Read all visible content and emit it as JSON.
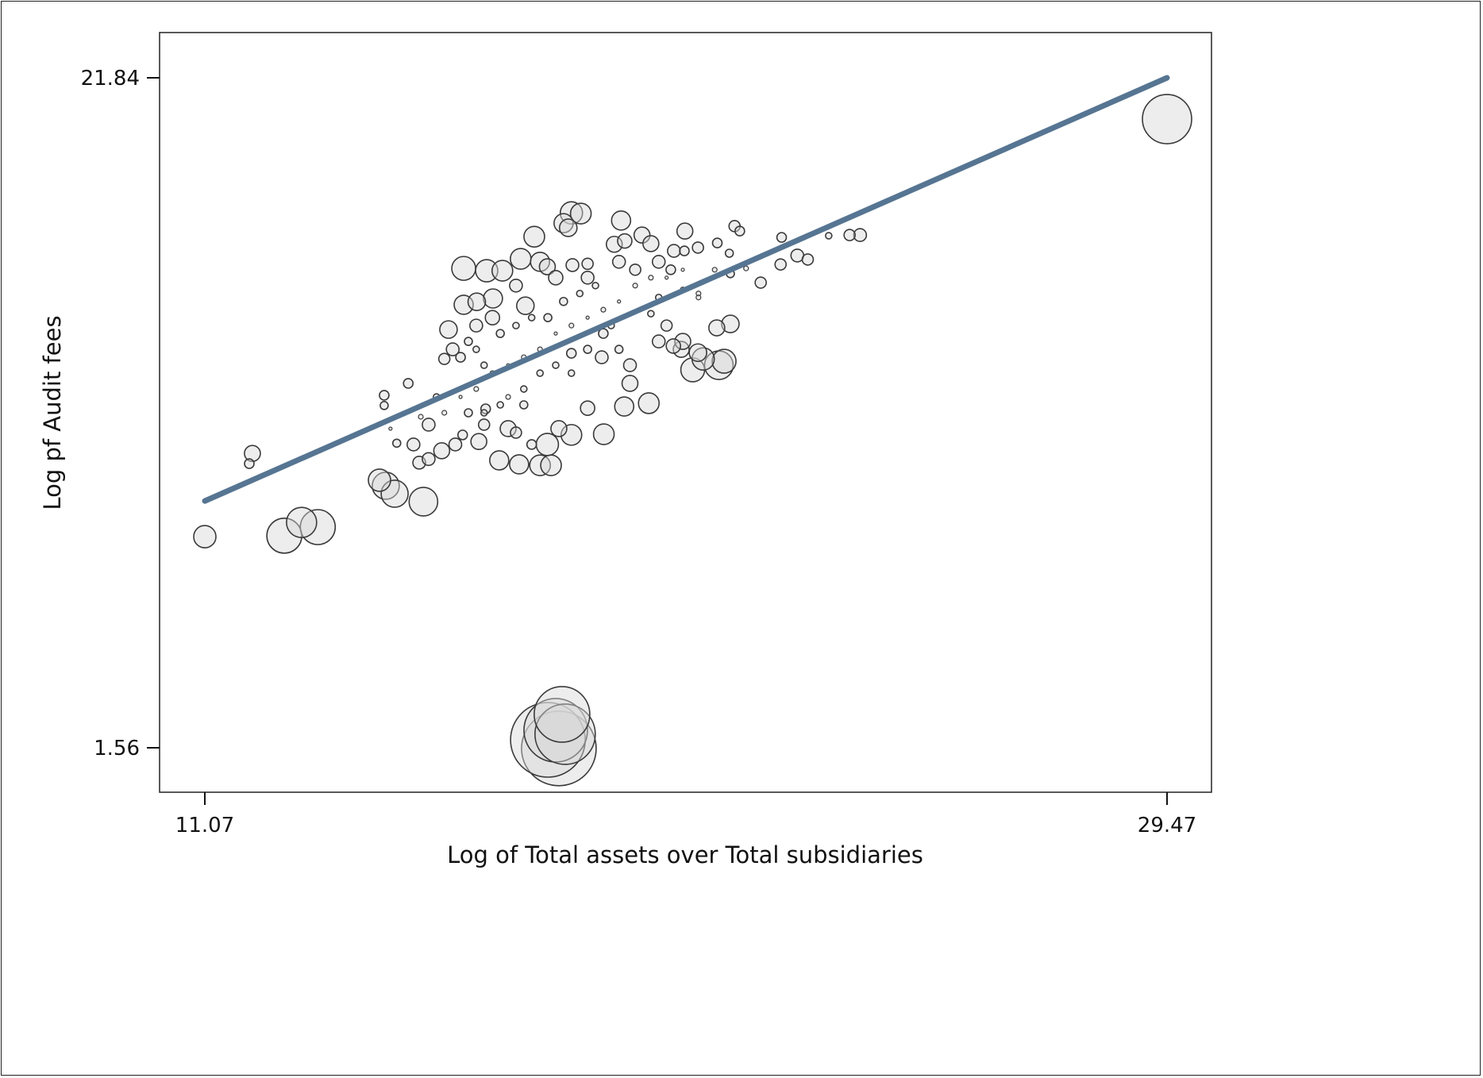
{
  "chart_data": {
    "type": "scatter",
    "title": "",
    "xlabel": "Log of Total assets over Total subsidiaries",
    "ylabel": "Log pf Audit fees",
    "xlim": [
      11.07,
      29.47
    ],
    "ylim": [
      1.56,
      21.84
    ],
    "xticks": [
      "11.07",
      "29.47"
    ],
    "yticks": [
      "1.56",
      "21.84"
    ],
    "grid": false,
    "legend": "none",
    "marker": "hollow circles weighted by size",
    "colors": {
      "marker_fill": "#d8d8d8",
      "marker_stroke": "#3a3a3a",
      "fit_line": "#567592"
    },
    "fit_line": {
      "x": [
        11.07,
        29.47
      ],
      "y": [
        9.03,
        21.84
      ]
    },
    "points": [
      [
        29.47,
        20.59,
        31
      ],
      [
        11.07,
        7.95,
        14
      ],
      [
        12.59,
        7.98,
        22
      ],
      [
        12.92,
        8.38,
        19
      ],
      [
        13.23,
        8.24,
        22
      ],
      [
        11.98,
        10.47,
        10
      ],
      [
        11.92,
        10.16,
        6
      ],
      [
        14.5,
        12.23,
        6
      ],
      [
        14.5,
        11.92,
        5
      ],
      [
        14.96,
        12.59,
        6
      ],
      [
        14.41,
        9.66,
        14
      ],
      [
        14.53,
        9.49,
        17
      ],
      [
        14.7,
        9.25,
        17
      ],
      [
        15.25,
        9.01,
        18
      ],
      [
        17.84,
        1.54,
        47
      ],
      [
        17.63,
        1.8,
        47
      ],
      [
        17.9,
        2.57,
        35
      ],
      [
        17.78,
        2.09,
        40
      ],
      [
        17.96,
        1.97,
        38
      ],
      [
        18.08,
        17.75,
        14
      ],
      [
        18.26,
        17.73,
        13
      ],
      [
        17.93,
        17.44,
        12
      ],
      [
        18.02,
        17.3,
        11
      ],
      [
        17.37,
        17.03,
        13
      ],
      [
        19.03,
        17.52,
        12
      ],
      [
        20.25,
        17.2,
        10
      ],
      [
        21.2,
        17.35,
        7
      ],
      [
        21.3,
        17.2,
        6
      ],
      [
        22.1,
        17.01,
        6
      ],
      [
        23.4,
        17.08,
        7
      ],
      [
        23.6,
        17.08,
        8
      ],
      [
        23.0,
        17.06,
        4
      ],
      [
        16.02,
        16.07,
        15
      ],
      [
        16.02,
        14.97,
        12
      ],
      [
        15.73,
        14.22,
        11
      ],
      [
        16.46,
        16.0,
        14
      ],
      [
        16.76,
        16.0,
        13
      ],
      [
        17.11,
        16.36,
        13
      ],
      [
        17.48,
        16.27,
        12
      ],
      [
        16.58,
        15.16,
        12
      ],
      [
        16.27,
        15.06,
        11
      ],
      [
        17.2,
        14.94,
        11
      ],
      [
        17.62,
        16.12,
        10
      ],
      [
        18.1,
        16.17,
        8
      ],
      [
        18.39,
        16.21,
        7
      ],
      [
        18.9,
        16.8,
        10
      ],
      [
        19.1,
        16.9,
        9
      ],
      [
        19.43,
        17.08,
        10
      ],
      [
        19.6,
        16.82,
        10
      ],
      [
        20.04,
        16.6,
        8
      ],
      [
        20.24,
        16.6,
        6
      ],
      [
        20.5,
        16.7,
        7
      ],
      [
        20.87,
        16.84,
        6
      ],
      [
        21.1,
        16.53,
        5
      ],
      [
        21.7,
        15.64,
        7
      ],
      [
        22.08,
        16.19,
        7
      ],
      [
        22.6,
        16.34,
        7
      ],
      [
        22.4,
        16.46,
        8
      ],
      [
        21.12,
        14.39,
        11
      ],
      [
        20.86,
        14.27,
        10
      ],
      [
        20.18,
        13.62,
        10
      ],
      [
        20.4,
        13.0,
        15
      ],
      [
        20.9,
        13.14,
        18
      ],
      [
        21.0,
        13.26,
        15
      ],
      [
        20.6,
        13.33,
        14
      ],
      [
        20.5,
        13.52,
        11
      ],
      [
        19.56,
        11.99,
        13
      ],
      [
        19.2,
        12.59,
        10
      ],
      [
        19.09,
        11.89,
        12
      ],
      [
        18.7,
        11.05,
        13
      ],
      [
        18.66,
        13.38,
        8
      ],
      [
        19.2,
        13.14,
        8
      ],
      [
        18.39,
        11.84,
        9
      ],
      [
        18.08,
        11.03,
        13
      ],
      [
        17.84,
        11.22,
        10
      ],
      [
        17.62,
        10.74,
        14
      ],
      [
        17.48,
        10.11,
        13
      ],
      [
        17.69,
        10.11,
        13
      ],
      [
        17.08,
        10.14,
        12
      ],
      [
        16.7,
        10.26,
        12
      ],
      [
        16.31,
        10.83,
        10
      ],
      [
        15.86,
        10.74,
        8
      ],
      [
        16.0,
        11.03,
        6
      ],
      [
        15.17,
        10.19,
        8
      ],
      [
        15.35,
        10.3,
        8
      ],
      [
        15.06,
        10.74,
        8
      ],
      [
        14.74,
        10.78,
        5
      ],
      [
        15.6,
        10.55,
        10
      ],
      [
        15.65,
        11.7,
        3
      ],
      [
        15.96,
        12.18,
        2
      ],
      [
        16.26,
        12.42,
        3
      ],
      [
        16.57,
        12.9,
        3
      ],
      [
        16.87,
        13.14,
        2
      ],
      [
        17.17,
        13.38,
        3
      ],
      [
        17.48,
        13.62,
        3
      ],
      [
        17.78,
        14.1,
        2
      ],
      [
        18.08,
        14.34,
        3
      ],
      [
        18.39,
        14.58,
        2
      ],
      [
        18.69,
        14.82,
        3
      ],
      [
        18.99,
        15.07,
        2
      ],
      [
        19.3,
        15.55,
        3
      ],
      [
        19.6,
        15.79,
        3
      ],
      [
        19.9,
        15.79,
        2
      ],
      [
        20.21,
        16.03,
        2
      ],
      [
        20.51,
        15.31,
        3
      ],
      [
        20.82,
        16.03,
        3
      ],
      [
        16.87,
        12.18,
        3
      ],
      [
        17.17,
        12.42,
        4
      ],
      [
        16.26,
        13.62,
        4
      ],
      [
        16.41,
        13.14,
        4
      ],
      [
        16.11,
        13.86,
        5
      ],
      [
        16.72,
        14.1,
        5
      ],
      [
        17.02,
        14.34,
        4
      ],
      [
        17.32,
        14.58,
        4
      ],
      [
        17.63,
        14.58,
        5
      ],
      [
        17.93,
        15.07,
        5
      ],
      [
        18.24,
        15.31,
        4
      ],
      [
        18.54,
        15.55,
        4
      ],
      [
        17.78,
        13.14,
        4
      ],
      [
        18.08,
        12.9,
        4
      ],
      [
        17.48,
        12.9,
        4
      ],
      [
        17.17,
        11.94,
        5
      ],
      [
        16.72,
        11.94,
        4
      ],
      [
        16.41,
        11.7,
        4
      ],
      [
        15.96,
        13.38,
        6
      ],
      [
        15.81,
        13.62,
        8
      ],
      [
        15.65,
        13.33,
        7
      ],
      [
        16.26,
        14.34,
        8
      ],
      [
        16.57,
        14.58,
        9
      ],
      [
        16.11,
        11.7,
        5
      ],
      [
        17.02,
        15.55,
        8
      ],
      [
        17.78,
        15.79,
        9
      ],
      [
        18.39,
        15.79,
        8
      ],
      [
        18.99,
        16.27,
        8
      ],
      [
        19.3,
        16.03,
        7
      ],
      [
        19.75,
        16.27,
        8
      ],
      [
        19.98,
        16.03,
        6
      ],
      [
        18.69,
        14.1,
        6
      ],
      [
        18.99,
        13.62,
        5
      ],
      [
        18.39,
        13.62,
        5
      ],
      [
        18.08,
        13.5,
        6
      ],
      [
        17.32,
        10.74,
        6
      ],
      [
        17.02,
        11.1,
        7
      ],
      [
        16.87,
        11.22,
        10
      ],
      [
        16.44,
        11.82,
        6
      ],
      [
        16.41,
        11.34,
        7
      ],
      [
        15.35,
        11.34,
        8
      ],
      [
        15.5,
        12.18,
        4
      ],
      [
        15.2,
        11.58,
        3
      ],
      [
        14.62,
        11.22,
        2
      ],
      [
        18.84,
        14.34,
        4
      ],
      [
        19.6,
        14.7,
        4
      ],
      [
        19.9,
        14.34,
        7
      ],
      [
        19.75,
        13.86,
        8
      ],
      [
        20.21,
        13.86,
        10
      ],
      [
        20.03,
        13.72,
        9
      ],
      [
        19.75,
        15.19,
        4
      ],
      [
        20.21,
        15.43,
        3
      ],
      [
        20.51,
        15.19,
        3
      ],
      [
        21.12,
        15.91,
        5
      ],
      [
        21.42,
        16.07,
        3
      ]
    ]
  }
}
